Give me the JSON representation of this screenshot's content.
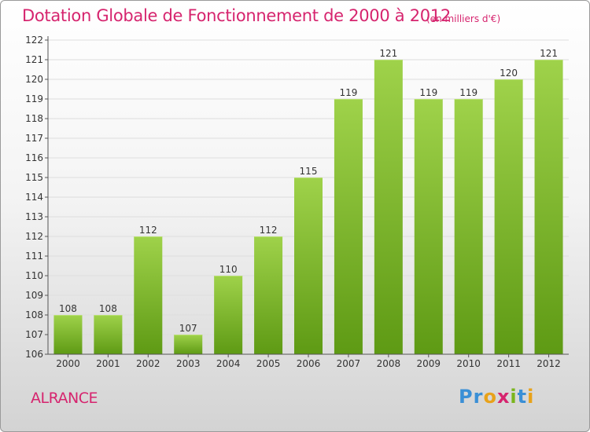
{
  "title": "Dotation Globale de Fonctionnement de 2000 à 2012",
  "unit_note": "(en milliers d'€)",
  "commune": "ALRANCE",
  "logo": {
    "letters": [
      "P",
      "r",
      "o",
      "x",
      "i",
      "t",
      "i"
    ],
    "colors": [
      "#3a8fd6",
      "#3a8fd6",
      "#e8a21a",
      "#d6246e",
      "#7ab51d",
      "#3a8fd6",
      "#e8a21a"
    ]
  },
  "colors": {
    "bar_top": "#9fd24a",
    "bar_bottom": "#5e9a14",
    "accent": "#d6246e"
  },
  "chart_data": {
    "type": "bar",
    "title": "Dotation Globale de Fonctionnement de 2000 à 2012",
    "xlabel": "",
    "ylabel": "",
    "categories": [
      "2000",
      "2001",
      "2002",
      "2003",
      "2004",
      "2005",
      "2006",
      "2007",
      "2008",
      "2009",
      "2010",
      "2011",
      "2012"
    ],
    "values": [
      108,
      108,
      112,
      107,
      110,
      112,
      115,
      119,
      121,
      119,
      119,
      120,
      121
    ],
    "value_labels": [
      "108",
      "108",
      "112",
      "107",
      "110",
      "112",
      "115",
      "119",
      "121",
      "119",
      "119",
      "120",
      "121"
    ],
    "ylim": [
      106,
      122
    ],
    "yticks": [
      106,
      107,
      108,
      109,
      110,
      111,
      112,
      113,
      114,
      115,
      116,
      117,
      118,
      119,
      120,
      121,
      122
    ],
    "ytick_labels": [
      "106",
      "107",
      "108",
      "109",
      "110",
      "111",
      "112",
      "113",
      "114",
      "115",
      "116",
      "117",
      "118",
      "119",
      "120",
      "121",
      "122"
    ],
    "grid": true,
    "legend": "none"
  }
}
